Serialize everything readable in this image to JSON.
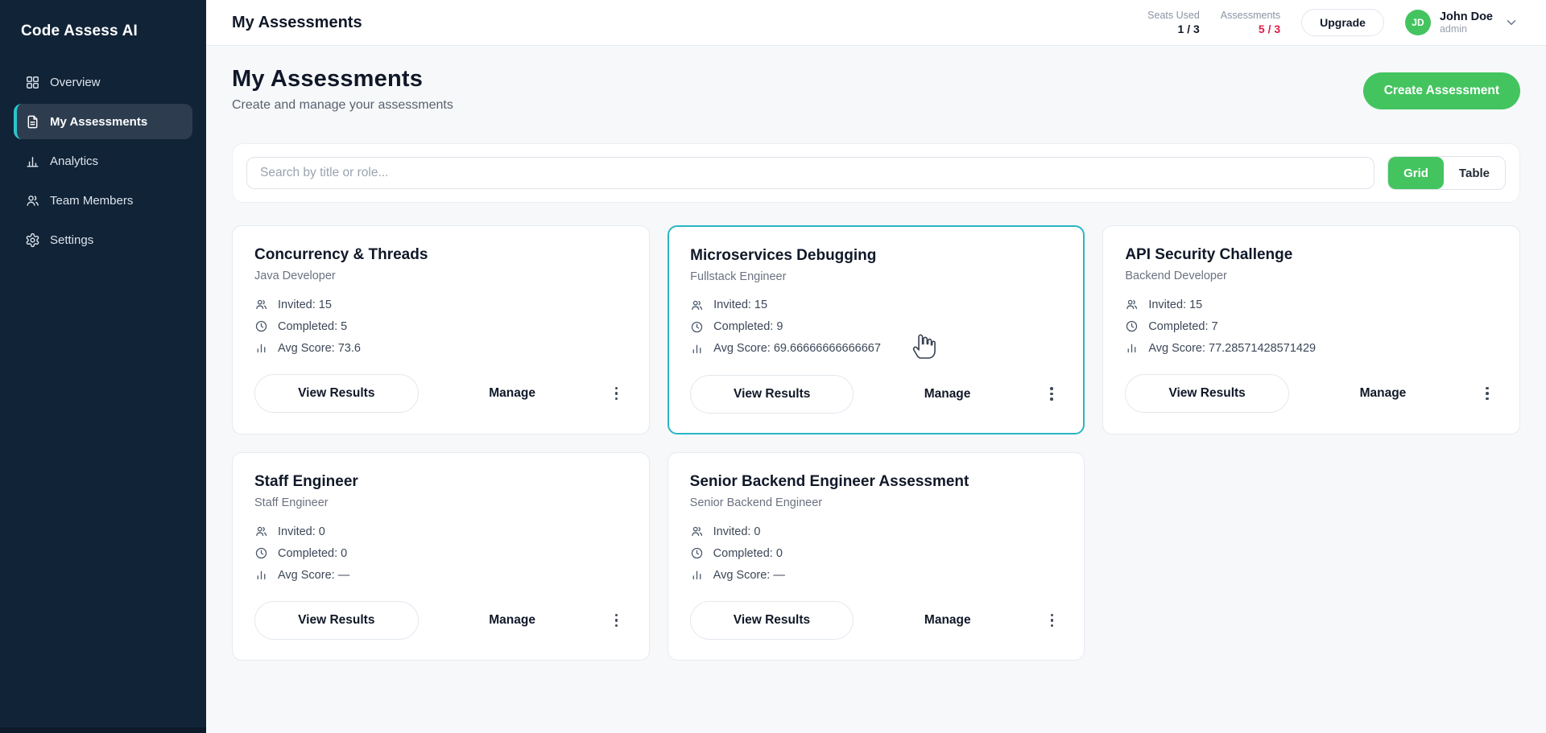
{
  "colors": {
    "sidebar": "#112337",
    "teal_accent": "#2cc5c9",
    "green": "#43c45f",
    "red": "#e11d48",
    "cyan_highlight": "#2ab5c5"
  },
  "sidebar": {
    "logo": "Code Assess AI",
    "items": [
      {
        "label": "Overview",
        "icon": "grid-icon",
        "active": false
      },
      {
        "label": "My Assessments",
        "icon": "document-icon",
        "active": true
      },
      {
        "label": "Analytics",
        "icon": "analytics-icon",
        "active": false
      },
      {
        "label": "Team Members",
        "icon": "users-icon",
        "active": false
      },
      {
        "label": "Settings",
        "icon": "gear-icon",
        "active": false
      }
    ]
  },
  "header": {
    "title": "My Assessments",
    "stats": [
      {
        "label": "Seats Used",
        "value": "1 / 3",
        "alert": false
      },
      {
        "label": "Assessments",
        "value": "5 / 3",
        "alert": true
      }
    ],
    "upgrade_label": "Upgrade",
    "user": {
      "initials": "JD",
      "name": "John Doe",
      "role": "admin"
    }
  },
  "page": {
    "title": "My Assessments",
    "subtitle": "Create and manage your assessments",
    "create_button": "Create Assessment"
  },
  "toolbar": {
    "search_placeholder": "Search by title or role...",
    "view_toggle": [
      {
        "label": "Grid",
        "active": true
      },
      {
        "label": "Table",
        "active": false
      }
    ]
  },
  "card_actions": {
    "view_results": "View Results",
    "manage": "Manage"
  },
  "cards": [
    {
      "title": "Concurrency & Threads",
      "role": "Java Developer",
      "highlighted": false,
      "stats": [
        {
          "icon": "users-icon",
          "text": "Invited: 15"
        },
        {
          "icon": "clock-icon",
          "text": "Completed: 5"
        },
        {
          "icon": "bar-chart-icon",
          "text": "Avg Score: 73.6"
        }
      ]
    },
    {
      "title": "Microservices Debugging",
      "role": "Fullstack Engineer",
      "highlighted": true,
      "stats": [
        {
          "icon": "users-icon",
          "text": "Invited: 15"
        },
        {
          "icon": "clock-icon",
          "text": "Completed: 9"
        },
        {
          "icon": "bar-chart-icon",
          "text": "Avg Score: 69.66666666666667"
        }
      ]
    },
    {
      "title": "API Security Challenge",
      "role": "Backend Developer",
      "highlighted": false,
      "stats": [
        {
          "icon": "users-icon",
          "text": "Invited: 15"
        },
        {
          "icon": "clock-icon",
          "text": "Completed: 7"
        },
        {
          "icon": "bar-chart-icon",
          "text": "Avg Score: 77.28571428571429"
        }
      ]
    },
    {
      "title": "Staff Engineer",
      "role": "Staff Engineer",
      "highlighted": false,
      "stats": [
        {
          "icon": "users-icon",
          "text": "Invited: 0"
        },
        {
          "icon": "clock-icon",
          "text": "Completed: 0"
        },
        {
          "icon": "bar-chart-icon",
          "text": "Avg Score: —"
        }
      ]
    },
    {
      "title": "Senior Backend Engineer Assessment",
      "role": "Senior Backend Engineer",
      "highlighted": false,
      "stats": [
        {
          "icon": "users-icon",
          "text": "Invited: 0"
        },
        {
          "icon": "clock-icon",
          "text": "Completed: 0"
        },
        {
          "icon": "bar-chart-icon",
          "text": "Avg Score: —"
        }
      ]
    }
  ]
}
